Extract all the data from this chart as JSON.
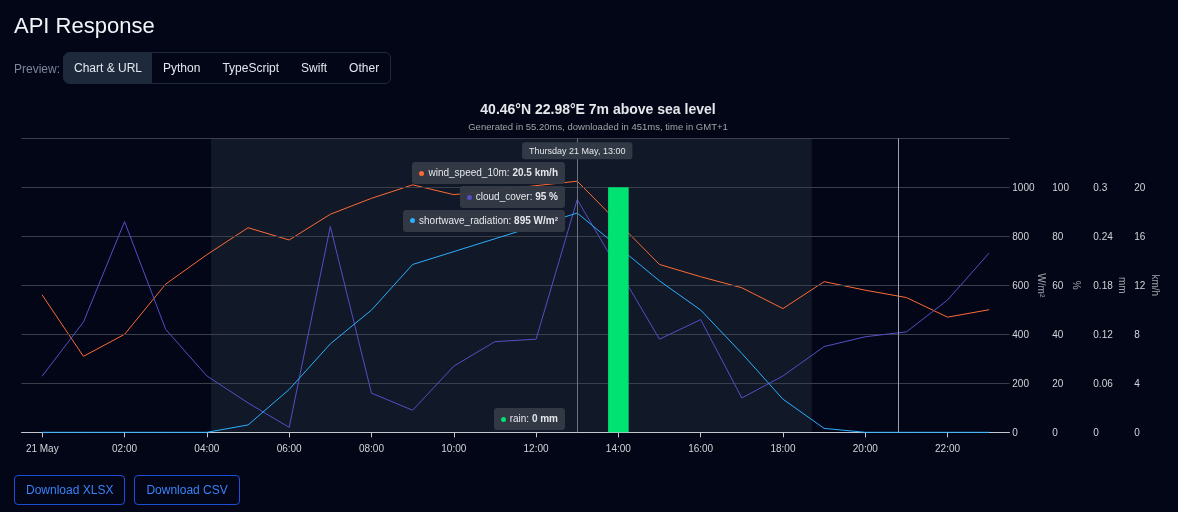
{
  "chart_data": [
    {
      "type": "line",
      "title": "40.46°N 22.98°E 7m above sea level",
      "subtitle": "Generated in 55.20ms, downloaded in 451ms, time in GMT+1",
      "ylabel": "W/m²",
      "y2label": "%",
      "y3label": "mm",
      "x": [
        0,
        1,
        2,
        3,
        4,
        5,
        6,
        7,
        8,
        9,
        10,
        11,
        12,
        13,
        14,
        15,
        16,
        17,
        18,
        19,
        20,
        21,
        22,
        23
      ],
      "xlim": [
        -0.5,
        23.5
      ],
      "xticks": [
        {
          "value": 0,
          "label": "21 May"
        },
        {
          "value": 2,
          "label": "02:00"
        },
        {
          "value": 4,
          "label": "04:00"
        },
        {
          "value": 6,
          "label": "06:00"
        },
        {
          "value": 8,
          "label": "08:00"
        },
        {
          "value": 10,
          "label": "10:00"
        },
        {
          "value": 12,
          "label": "12:00"
        },
        {
          "value": 14,
          "label": "14:00"
        },
        {
          "value": 16,
          "label": "16:00"
        },
        {
          "value": 18,
          "label": "18:00"
        },
        {
          "value": 20,
          "label": "20:00"
        },
        {
          "value": 22,
          "label": "22:00"
        }
      ],
      "ylim": [
        0,
        1200
      ],
      "yticks": [
        0,
        200,
        400,
        600,
        800,
        1000,
        {
          "value": 1200,
          "label": null
        }
      ],
      "y2lim": [
        0,
        120
      ],
      "y2ticks": [
        0,
        20,
        40,
        60,
        80,
        100
      ],
      "y3lim": [
        0,
        0.36
      ],
      "y3ticks": [
        0,
        0.06,
        0.12,
        0.18,
        0.24,
        0.3
      ],
      "series": [
        {
          "color": "#544fc5",
          "axis": "y2",
          "values": [
            23,
            45,
            86,
            42,
            23,
            12,
            2,
            84,
            16,
            9,
            27,
            37,
            38,
            95,
            null,
            38,
            46,
            14,
            23,
            35,
            39,
            41,
            54,
            73
          ]
        },
        {
          "color": "#2caffe",
          "values": [
            0,
            0,
            0,
            0,
            0,
            30,
            175,
            361,
            499,
            685,
            null,
            null,
            null,
            895,
            null,
            618,
            499,
            322,
            135,
            16,
            0,
            0,
            0,
            0
          ]
        },
        {
          "type": "bar",
          "color": "#00e272",
          "axis": "y3",
          "values": [
            0,
            0,
            0,
            0,
            0,
            0,
            0,
            0,
            0,
            0,
            0,
            0,
            0,
            0,
            0.3,
            0,
            0,
            0,
            0,
            0,
            0,
            0,
            0,
            0
          ]
        }
      ],
      "marker": "none",
      "grid": "y",
      "ref_lines": [
        {
          "axis": "x",
          "value": 13,
          "label": "Thursday 21 May, 13:00",
          "color": "#6b7280"
        },
        {
          "axis": "x",
          "value": 20.8,
          "color": "#9ca3af"
        }
      ],
      "annotations": [
        "API Response",
        "Preview:",
        "Chart & URL",
        "Python",
        "TypeScript",
        "Swift",
        "Other",
        "cloud_cover: 95 %",
        "shortwave_radiation: 895 W/m²",
        "rain: 0 mm",
        "Download XLSX",
        "Download CSV"
      ]
    },
    {
      "type": "line",
      "ylabel": "km/h",
      "x": [
        0,
        1,
        2,
        3,
        4,
        5,
        6,
        7,
        8,
        9,
        10,
        11,
        12,
        13,
        14,
        15,
        16,
        17,
        18,
        19,
        20,
        21,
        22,
        23
      ],
      "xlim": [
        -0.5,
        23.5
      ],
      "ylim": [
        0,
        24
      ],
      "yticks": [
        0,
        4,
        8,
        12,
        16,
        20,
        {
          "value": 24,
          "label": null
        }
      ],
      "tick_labels": "y",
      "grid": "y",
      "series": [
        {
          "color": "#fe6a35",
          "values": [
            11.2,
            6.2,
            8.0,
            12.1,
            14.5,
            16.7,
            15.7,
            17.8,
            19.1,
            20.2,
            19.4,
            null,
            null,
            20.5,
            null,
            13.7,
            12.7,
            11.8,
            10.1,
            12.3,
            11.6,
            11.0,
            9.4,
            10.0
          ]
        }
      ],
      "marker": "none",
      "bands": [
        {
          "axis": "x",
          "from": 4.1,
          "to": 18.7,
          "color": "#111827"
        }
      ],
      "annotations": [
        "wind_speed_10m: 20.5 km/h"
      ]
    }
  ]
}
